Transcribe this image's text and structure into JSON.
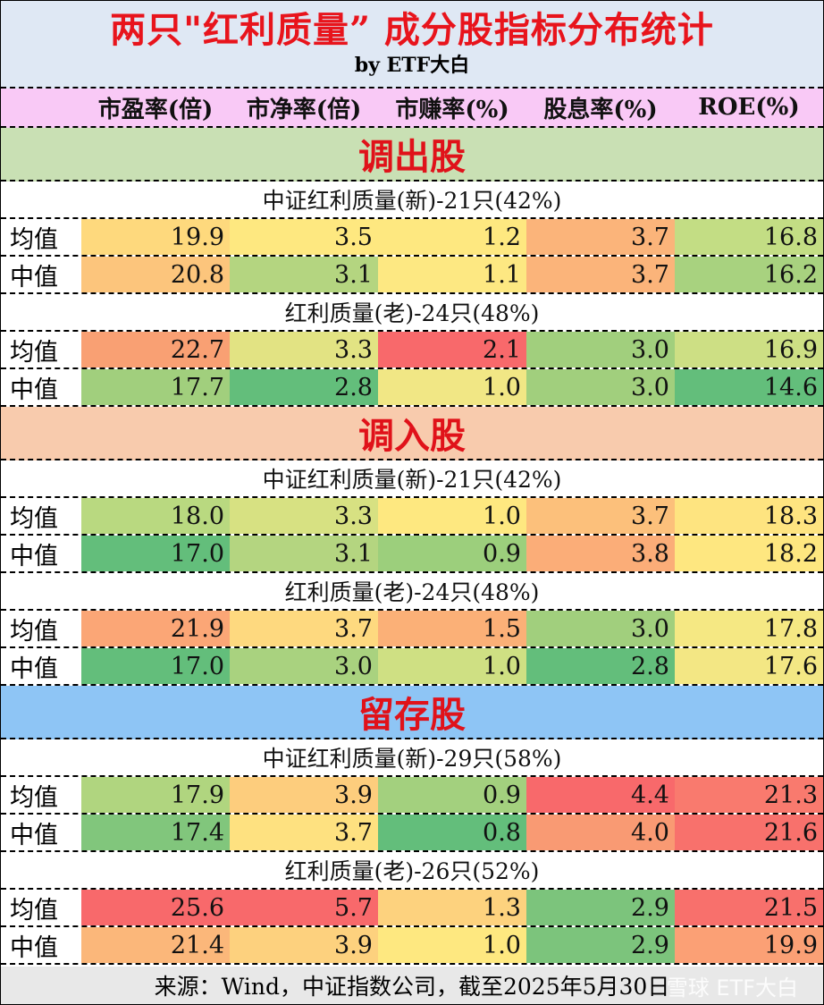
{
  "title": "两只\"红利质量” 成分股指标分布统计",
  "subtitle": "by ETF大白",
  "headers": [
    "市盈率(倍)",
    "市净率(倍)",
    "市赚率(%)",
    "股息率(%)",
    "ROE(%)"
  ],
  "row_labels": {
    "mean": "均值",
    "median": "中值"
  },
  "sections": [
    {
      "name": "调出股",
      "bg": "#c9e0b4",
      "groups": [
        {
          "name": "中证红利质量(新)-21只(42%)",
          "mean": [
            {
              "v": "19.9",
              "c": "#fed97d"
            },
            {
              "v": "3.5",
              "c": "#fee880"
            },
            {
              "v": "1.2",
              "c": "#fee880"
            },
            {
              "v": "3.7",
              "c": "#fbb47a"
            },
            {
              "v": "16.8",
              "c": "#c3dd84"
            }
          ],
          "median": [
            {
              "v": "20.8",
              "c": "#fcc57c"
            },
            {
              "v": "3.1",
              "c": "#b4d580"
            },
            {
              "v": "1.1",
              "c": "#fde882"
            },
            {
              "v": "3.7",
              "c": "#fbb47a"
            },
            {
              "v": "16.2",
              "c": "#a8d27f"
            }
          ]
        },
        {
          "name": "红利质量(老)-24只(48%)",
          "mean": [
            {
              "v": "22.7",
              "c": "#f9a073"
            },
            {
              "v": "3.3",
              "c": "#e2e383"
            },
            {
              "v": "2.1",
              "c": "#f8696b"
            },
            {
              "v": "3.0",
              "c": "#a1cf7d"
            },
            {
              "v": "16.9",
              "c": "#cddf84"
            }
          ],
          "median": [
            {
              "v": "17.7",
              "c": "#a1cf7d"
            },
            {
              "v": "2.8",
              "c": "#63be7b"
            },
            {
              "v": "1.0",
              "c": "#f1e785"
            },
            {
              "v": "3.0",
              "c": "#a1cf7d"
            },
            {
              "v": "14.6",
              "c": "#63be7b"
            }
          ]
        }
      ]
    },
    {
      "name": "调入股",
      "bg": "#f8cbad",
      "groups": [
        {
          "name": "中证红利质量(新)-21只(42%)",
          "mean": [
            {
              "v": "18.0",
              "c": "#b9d980"
            },
            {
              "v": "3.3",
              "c": "#d7e182"
            },
            {
              "v": "1.0",
              "c": "#fee880"
            },
            {
              "v": "3.7",
              "c": "#fcc07b"
            },
            {
              "v": "18.3",
              "c": "#fee480"
            }
          ],
          "median": [
            {
              "v": "17.0",
              "c": "#63be7b"
            },
            {
              "v": "3.1",
              "c": "#b4d580"
            },
            {
              "v": "0.9",
              "c": "#9ccf7c"
            },
            {
              "v": "3.8",
              "c": "#fbad78"
            },
            {
              "v": "18.2",
              "c": "#fee780"
            }
          ]
        },
        {
          "name": "红利质量(老)-24只(48%)",
          "mean": [
            {
              "v": "21.9",
              "c": "#fba676"
            },
            {
              "v": "3.7",
              "c": "#fed97f"
            },
            {
              "v": "1.5",
              "c": "#fbb077"
            },
            {
              "v": "3.0",
              "c": "#a1cf7d"
            },
            {
              "v": "17.8",
              "c": "#f5e883"
            }
          ],
          "median": [
            {
              "v": "17.0",
              "c": "#63be7b"
            },
            {
              "v": "3.0",
              "c": "#a9d27f"
            },
            {
              "v": "1.0",
              "c": "#cfe083"
            },
            {
              "v": "2.8",
              "c": "#63be7b"
            },
            {
              "v": "17.6",
              "c": "#f3e784"
            }
          ]
        }
      ]
    },
    {
      "name": "留存股",
      "bg": "#8ec5f5",
      "groups": [
        {
          "name": "中证红利质量(新)-29只(58%)",
          "mean": [
            {
              "v": "17.9",
              "c": "#b0d57f"
            },
            {
              "v": "3.9",
              "c": "#fdcd7d"
            },
            {
              "v": "0.9",
              "c": "#a3d07e"
            },
            {
              "v": "4.4",
              "c": "#f8696b"
            },
            {
              "v": "21.3",
              "c": "#f97a6e"
            }
          ],
          "median": [
            {
              "v": "17.4",
              "c": "#81c67c"
            },
            {
              "v": "3.7",
              "c": "#fee180"
            },
            {
              "v": "0.8",
              "c": "#63be7b"
            },
            {
              "v": "4.0",
              "c": "#f99a73"
            },
            {
              "v": "21.6",
              "c": "#f8716c"
            }
          ]
        },
        {
          "name": "红利质量(老)-26只(52%)",
          "mean": [
            {
              "v": "25.6",
              "c": "#f8696b"
            },
            {
              "v": "5.7",
              "c": "#f8696b"
            },
            {
              "v": "1.3",
              "c": "#fdd27e"
            },
            {
              "v": "2.9",
              "c": "#7cc47c"
            },
            {
              "v": "21.5",
              "c": "#f8706c"
            }
          ],
          "median": [
            {
              "v": "21.4",
              "c": "#fbb77a"
            },
            {
              "v": "3.9",
              "c": "#fdd17e"
            },
            {
              "v": "1.0",
              "c": "#fee880"
            },
            {
              "v": "2.9",
              "c": "#7cc47c"
            },
            {
              "v": "19.9",
              "c": "#fba075"
            }
          ]
        }
      ]
    }
  ],
  "footer": "来源：Wind，中证指数公司，截至2025年5月30日",
  "watermark": "雪球 ETF大白"
}
